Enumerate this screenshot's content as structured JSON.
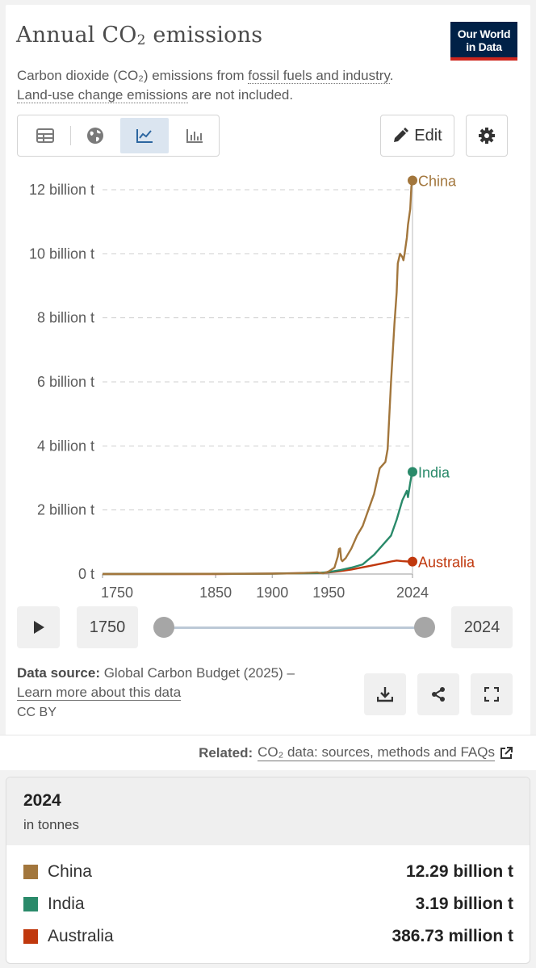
{
  "header": {
    "title_main": "Annual CO",
    "title_sub": "2",
    "title_tail": " emissions",
    "logo_line1": "Our World",
    "logo_line2": "in Data",
    "subtitle_a": "Carbon dioxide (CO₂) emissions from ",
    "subtitle_link1": "fossil fuels and industry",
    "subtitle_b": ".",
    "subtitle_link2": "Land-use change emissions",
    "subtitle_c": " are not included."
  },
  "toolbar": {
    "tabs": [
      "table",
      "map",
      "line-chart",
      "bar-chart"
    ],
    "active_tab": "line-chart",
    "edit_label": "Edit"
  },
  "timeline": {
    "start_year": "1750",
    "end_year": "2024"
  },
  "footer": {
    "source_label": "Data source:",
    "source_text": " Global Carbon Budget (2025) –",
    "learn_more": "Learn more about this data",
    "license": "CC BY",
    "related_label": "Related:",
    "related_link": "CO₂ data: sources, methods and FAQs"
  },
  "table": {
    "year": "2024",
    "unit": "in tonnes",
    "rows": [
      {
        "name": "China",
        "value": "12.29 billion t",
        "color": "#a2763c"
      },
      {
        "name": "India",
        "value": "3.19 billion t",
        "color": "#2a8a6a"
      },
      {
        "name": "Australia",
        "value": "386.73 million t",
        "color": "#c0380d"
      }
    ]
  },
  "chart_data": {
    "type": "line",
    "title": "Annual CO₂ emissions",
    "ylabel": "",
    "xlabel": "",
    "x_ticks": [
      "1750",
      "1850",
      "1900",
      "1950",
      "2024"
    ],
    "y_ticks": [
      "0 t",
      "2 billion t",
      "4 billion t",
      "6 billion t",
      "8 billion t",
      "10 billion t",
      "12 billion t"
    ],
    "y_tick_values": [
      0,
      2,
      4,
      6,
      8,
      10,
      12
    ],
    "xlim": [
      1750,
      2024
    ],
    "ylim": [
      0,
      12
    ],
    "unit": "billion t",
    "grid": "horizontal dashed",
    "series": [
      {
        "name": "China",
        "color": "#a2763c",
        "x": [
          1750,
          1900,
          1920,
          1940,
          1945,
          1950,
          1955,
          1958,
          1959,
          1960,
          1961,
          1962,
          1965,
          1970,
          1975,
          1980,
          1985,
          1990,
          1995,
          2000,
          2002,
          2005,
          2008,
          2010,
          2011,
          2013,
          2015,
          2016,
          2017,
          2019,
          2020,
          2022,
          2023,
          2024
        ],
        "y": [
          0,
          0.01,
          0.02,
          0.05,
          0.02,
          0.08,
          0.2,
          0.55,
          0.78,
          0.8,
          0.45,
          0.4,
          0.5,
          0.8,
          1.2,
          1.5,
          2.0,
          2.5,
          3.3,
          3.5,
          3.9,
          6.0,
          7.8,
          8.8,
          9.7,
          10.0,
          9.9,
          9.8,
          10.0,
          10.5,
          10.9,
          11.4,
          12.1,
          12.29
        ]
      },
      {
        "name": "India",
        "color": "#2a8a6a",
        "x": [
          1750,
          1900,
          1940,
          1950,
          1960,
          1970,
          1980,
          1990,
          2000,
          2005,
          2010,
          2015,
          2019,
          2020,
          2022,
          2023,
          2024
        ],
        "y": [
          0,
          0.01,
          0.03,
          0.06,
          0.12,
          0.2,
          0.3,
          0.6,
          1.0,
          1.2,
          1.7,
          2.3,
          2.6,
          2.4,
          2.85,
          3.05,
          3.19
        ]
      },
      {
        "name": "Australia",
        "color": "#c0380d",
        "x": [
          1750,
          1850,
          1900,
          1920,
          1940,
          1950,
          1960,
          1970,
          1980,
          1990,
          2000,
          2005,
          2010,
          2015,
          2020,
          2024
        ],
        "y": [
          0,
          0.001,
          0.015,
          0.025,
          0.03,
          0.05,
          0.09,
          0.14,
          0.21,
          0.28,
          0.35,
          0.39,
          0.42,
          0.4,
          0.39,
          0.387
        ]
      }
    ],
    "end_labels": [
      "China",
      "India",
      "Australia"
    ]
  }
}
